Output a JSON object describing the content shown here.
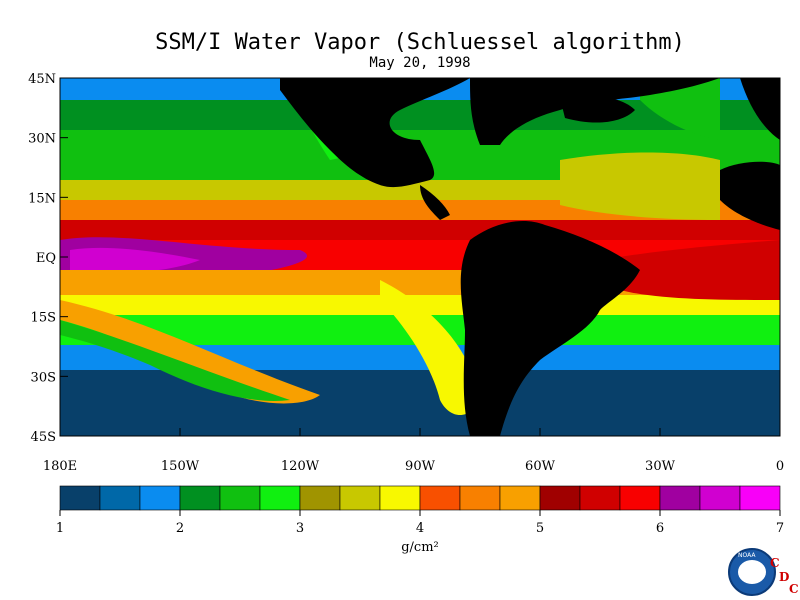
{
  "title": "SSM/I Water Vapor (Schluessel algorithm)",
  "date": "May 20, 1998",
  "lat_labels": [
    "45N",
    "30N",
    "15N",
    "EQ",
    "15S",
    "30S",
    "45S"
  ],
  "lon_labels": [
    "180E",
    "150W",
    "120W",
    "90W",
    "60W",
    "30W",
    "0"
  ],
  "colorbar": {
    "colors": [
      "#08406a",
      "#0068a8",
      "#0a8cf0",
      "#009020",
      "#10c010",
      "#10f010",
      "#a09400",
      "#c8c800",
      "#f8f800",
      "#f85000",
      "#f88000",
      "#f8a000",
      "#a00000",
      "#d00000",
      "#f80000",
      "#a000a0",
      "#d000d0",
      "#f800f8"
    ],
    "tick_labels": [
      "1",
      "2",
      "3",
      "4",
      "5",
      "6",
      "7"
    ]
  },
  "units": "g/cm²",
  "logo_text": "NOAA",
  "cdc": [
    "C",
    "D",
    "C"
  ]
}
